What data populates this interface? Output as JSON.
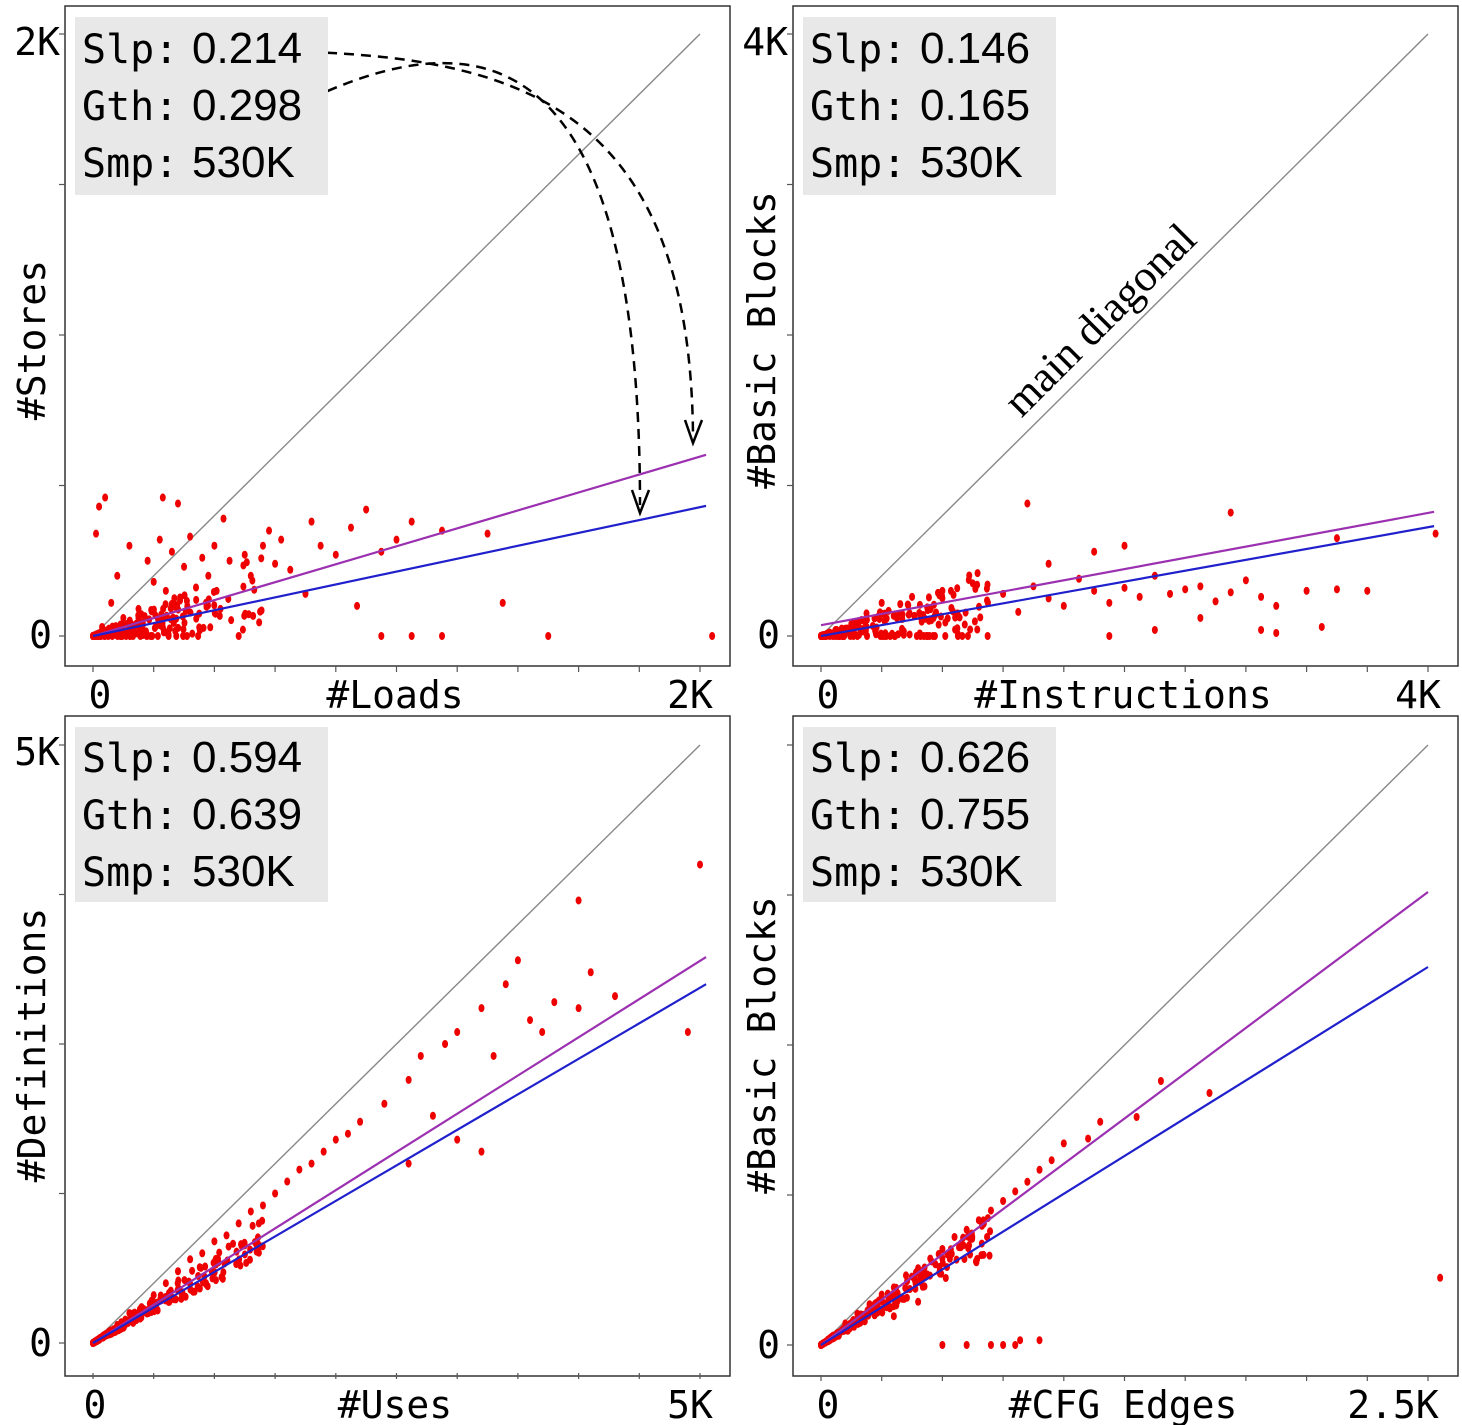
{
  "colors": {
    "points": "#ee0000",
    "fit_purple": "#9b30b0",
    "fit_blue": "#2020cc",
    "diagonal": "#888888",
    "stats_box": "#e8e8e8"
  },
  "annotations": {
    "diagonal_label": "main diagonal"
  },
  "chart_data": [
    {
      "type": "scatter",
      "xlabel": "#Loads",
      "ylabel": "#Stores",
      "x_ticks": [
        "0",
        "2K"
      ],
      "y_ticks": [
        "0",
        "2K"
      ],
      "xlim": [
        0,
        2000
      ],
      "ylim": [
        0,
        2000
      ],
      "stats": [
        {
          "name": "Slp:",
          "value": "0.214"
        },
        {
          "name": "Gth:",
          "value": "0.298"
        },
        {
          "name": "Smp:",
          "value": "530K"
        }
      ],
      "blue_fit": {
        "slope": 0.214
      },
      "purple_fit": {
        "slope": 0.298
      },
      "arrows": true,
      "points": [
        [
          60,
          110
        ],
        [
          80,
          200
        ],
        [
          120,
          300
        ],
        [
          150,
          90
        ],
        [
          180,
          250
        ],
        [
          200,
          180
        ],
        [
          220,
          320
        ],
        [
          240,
          150
        ],
        [
          260,
          280
        ],
        [
          300,
          230
        ],
        [
          320,
          330
        ],
        [
          340,
          120
        ],
        [
          360,
          260
        ],
        [
          380,
          200
        ],
        [
          400,
          300
        ],
        [
          420,
          90
        ],
        [
          450,
          250
        ],
        [
          500,
          270
        ],
        [
          520,
          200
        ],
        [
          560,
          300
        ],
        [
          600,
          240
        ],
        [
          650,
          220
        ],
        [
          700,
          140
        ],
        [
          720,
          380
        ],
        [
          750,
          300
        ],
        [
          800,
          270
        ],
        [
          850,
          360
        ],
        [
          870,
          100
        ],
        [
          900,
          420
        ],
        [
          950,
          280
        ],
        [
          1000,
          320
        ],
        [
          1050,
          380
        ],
        [
          1150,
          350
        ],
        [
          1300,
          340
        ],
        [
          1350,
          110
        ],
        [
          1500,
          0
        ],
        [
          1150,
          0
        ],
        [
          1050,
          0
        ],
        [
          950,
          0
        ],
        [
          2040,
          0
        ],
        [
          40,
          460
        ],
        [
          20,
          430
        ],
        [
          230,
          460
        ],
        [
          280,
          440
        ],
        [
          430,
          390
        ],
        [
          580,
          350
        ],
        [
          620,
          320
        ],
        [
          100,
          60
        ],
        [
          30,
          30
        ],
        [
          10,
          340
        ]
      ]
    },
    {
      "type": "scatter",
      "xlabel": "#Instructions",
      "ylabel": "#Basic Blocks",
      "x_ticks": [
        "0",
        "4K"
      ],
      "y_ticks": [
        "0",
        "4K"
      ],
      "xlim": [
        0,
        4000
      ],
      "ylim": [
        0,
        4000
      ],
      "stats": [
        {
          "name": "Slp:",
          "value": "0.146"
        },
        {
          "name": "Gth:",
          "value": "0.165"
        },
        {
          "name": "Smp:",
          "value": "530K"
        }
      ],
      "blue_fit": {
        "slope": 0.146
      },
      "purple_fit": {
        "slope": 0.165
      },
      "arrows": false,
      "points": [
        [
          200,
          80
        ],
        [
          300,
          150
        ],
        [
          400,
          220
        ],
        [
          500,
          120
        ],
        [
          600,
          260
        ],
        [
          700,
          190
        ],
        [
          800,
          300
        ],
        [
          900,
          150
        ],
        [
          1000,
          350
        ],
        [
          1100,
          220
        ],
        [
          1200,
          280
        ],
        [
          1300,
          160
        ],
        [
          1400,
          330
        ],
        [
          1500,
          250
        ],
        [
          1600,
          200
        ],
        [
          1700,
          380
        ],
        [
          1800,
          300
        ],
        [
          1900,
          220
        ],
        [
          2000,
          320
        ],
        [
          2100,
          260
        ],
        [
          2200,
          400
        ],
        [
          2300,
          280
        ],
        [
          2400,
          310
        ],
        [
          2500,
          330
        ],
        [
          2600,
          230
        ],
        [
          2700,
          290
        ],
        [
          2800,
          370
        ],
        [
          2900,
          260
        ],
        [
          3000,
          200
        ],
        [
          3200,
          300
        ],
        [
          3400,
          310
        ],
        [
          3600,
          300
        ],
        [
          1360,
          880
        ],
        [
          2700,
          820
        ],
        [
          3400,
          650
        ],
        [
          4050,
          680
        ],
        [
          2500,
          120
        ],
        [
          3000,
          20
        ],
        [
          2200,
          40
        ],
        [
          1900,
          0
        ],
        [
          2900,
          40
        ],
        [
          3300,
          60
        ],
        [
          1800,
          560
        ],
        [
          1500,
          480
        ],
        [
          2000,
          600
        ],
        [
          300,
          60
        ],
        [
          100,
          30
        ]
      ]
    },
    {
      "type": "scatter",
      "xlabel": "#Uses",
      "ylabel": "#Definitions",
      "x_ticks": [
        "0",
        "5K"
      ],
      "y_ticks": [
        "0",
        "5K"
      ],
      "xlim": [
        0,
        5000
      ],
      "ylim": [
        0,
        5000
      ],
      "stats": [
        {
          "name": "Slp:",
          "value": "0.594"
        },
        {
          "name": "Gth:",
          "value": "0.639"
        },
        {
          "name": "Smp:",
          "value": "530K"
        }
      ],
      "blue_fit": {
        "slope": 0.594
      },
      "purple_fit": {
        "slope": 0.639
      },
      "arrows": false,
      "points": [
        [
          200,
          150
        ],
        [
          300,
          250
        ],
        [
          400,
          300
        ],
        [
          500,
          400
        ],
        [
          600,
          500
        ],
        [
          700,
          600
        ],
        [
          800,
          700
        ],
        [
          900,
          750
        ],
        [
          1000,
          850
        ],
        [
          1100,
          900
        ],
        [
          1200,
          1000
        ],
        [
          1300,
          1100
        ],
        [
          1400,
          1150
        ],
        [
          1500,
          1250
        ],
        [
          1600,
          1350
        ],
        [
          1700,
          1450
        ],
        [
          1800,
          1500
        ],
        [
          1900,
          1600
        ],
        [
          2000,
          1700
        ],
        [
          2100,
          1750
        ],
        [
          2200,
          1850
        ],
        [
          2400,
          2000
        ],
        [
          2600,
          2200
        ],
        [
          2700,
          2400
        ],
        [
          2800,
          1900
        ],
        [
          2900,
          2500
        ],
        [
          3000,
          2600
        ],
        [
          3200,
          2800
        ],
        [
          3400,
          3000
        ],
        [
          3500,
          3200
        ],
        [
          3700,
          2600
        ],
        [
          3800,
          2850
        ],
        [
          4000,
          2800
        ],
        [
          4100,
          3100
        ],
        [
          4300,
          2900
        ],
        [
          4900,
          2600
        ],
        [
          5000,
          4000
        ],
        [
          2600,
          1500
        ],
        [
          3000,
          1700
        ],
        [
          3200,
          1600
        ],
        [
          4000,
          3700
        ],
        [
          3300,
          2400
        ],
        [
          3600,
          2700
        ]
      ]
    },
    {
      "type": "scatter",
      "xlabel": "#CFG Edges",
      "ylabel": "#Basic Blocks",
      "x_ticks": [
        "0",
        "2.5K"
      ],
      "y_ticks": [
        "0",
        "2.5K"
      ],
      "xlim": [
        0,
        2500
      ],
      "ylim": [
        0,
        2500
      ],
      "stats": [
        {
          "name": "Slp:",
          "value": "0.626"
        },
        {
          "name": "Gth:",
          "value": "0.755"
        },
        {
          "name": "Smp:",
          "value": "530K"
        }
      ],
      "blue_fit": {
        "slope": 0.626
      },
      "purple_fit": {
        "slope": 0.755
      },
      "arrows": false,
      "points": [
        [
          100,
          90
        ],
        [
          150,
          130
        ],
        [
          200,
          170
        ],
        [
          250,
          210
        ],
        [
          300,
          240
        ],
        [
          350,
          290
        ],
        [
          400,
          320
        ],
        [
          450,
          360
        ],
        [
          500,
          400
        ],
        [
          550,
          450
        ],
        [
          600,
          480
        ],
        [
          650,
          520
        ],
        [
          700,
          560
        ],
        [
          750,
          600
        ],
        [
          800,
          640
        ],
        [
          850,
          680
        ],
        [
          900,
          730
        ],
        [
          950,
          770
        ],
        [
          1000,
          840
        ],
        [
          1100,
          860
        ],
        [
          1150,
          930
        ],
        [
          1300,
          950
        ],
        [
          1400,
          1100
        ],
        [
          1600,
          1050
        ],
        [
          2550,
          280
        ],
        [
          500,
          0
        ],
        [
          600,
          0
        ],
        [
          700,
          0
        ],
        [
          750,
          0
        ],
        [
          800,
          0
        ],
        [
          820,
          20
        ],
        [
          900,
          20
        ],
        [
          300,
          120
        ],
        [
          400,
          180
        ]
      ]
    }
  ]
}
